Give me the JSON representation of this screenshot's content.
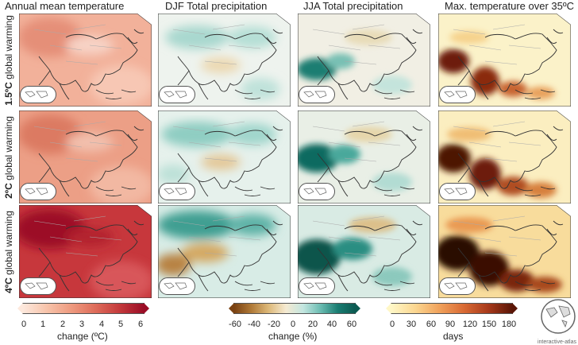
{
  "columns": [
    {
      "title": "Annual mean temperature"
    },
    {
      "title": "DJF Total precipitation"
    },
    {
      "title": "JJA Total precipitation"
    },
    {
      "title": "Max. temperature over 35ºC"
    }
  ],
  "rows": [
    {
      "value": "1.5ºC",
      "suffix": " global warming"
    },
    {
      "value": "2ºC",
      "suffix": " global warming"
    },
    {
      "value": "4ºC",
      "suffix": " global warming"
    }
  ],
  "colorbars": [
    {
      "ticks": [
        "0",
        "1",
        "2",
        "3",
        "4",
        "5",
        "6"
      ],
      "label": "change (ºC)",
      "colors": [
        "#fde8dc",
        "#f7c3aa",
        "#ee9a7f",
        "#de6c5a",
        "#c43a3c",
        "#9a0d26"
      ]
    },
    {
      "ticks": [
        "-60",
        "-40",
        "-20",
        "0",
        "20",
        "40",
        "60"
      ],
      "label": "change (%)",
      "colors": [
        "#7a4212",
        "#b07a38",
        "#ddb97a",
        "#f5ead2",
        "#c3e6e0",
        "#6cbcb2",
        "#1a7d72",
        "#0c5a51"
      ]
    },
    {
      "ticks": [
        "0",
        "30",
        "60",
        "90",
        "120",
        "150",
        "180"
      ],
      "label": "days",
      "colors": [
        "#fff7c6",
        "#fbd690",
        "#f0a15b",
        "#d96a34",
        "#a83a1b",
        "#5a1506"
      ]
    }
  ],
  "footer": {
    "credit": "interactive-atlas"
  }
}
